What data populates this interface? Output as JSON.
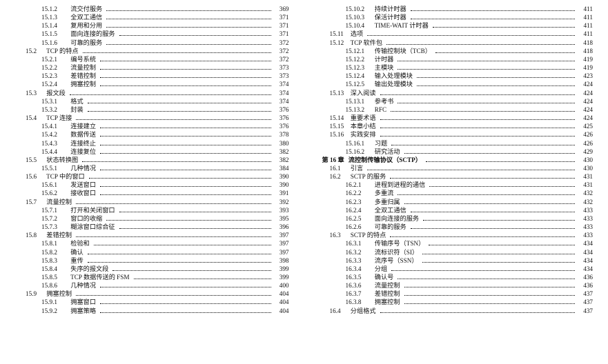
{
  "fontFamily": "SimSun, Songti SC, Times New Roman, serif",
  "fontSizePt": 9.2,
  "textColor": "#111111",
  "dotColor": "#000000",
  "background": "#ffffff",
  "leftColumn": [
    {
      "level": 3,
      "num": "15.1.2",
      "title": "流交付服务",
      "page": "369"
    },
    {
      "level": 3,
      "num": "15.1.3",
      "title": "全双工通信",
      "page": "371"
    },
    {
      "level": 3,
      "num": "15.1.4",
      "title": "复用和分用",
      "page": "371"
    },
    {
      "level": 3,
      "num": "15.1.5",
      "title": "面向连接的服务",
      "page": "371"
    },
    {
      "level": 3,
      "num": "15.1.6",
      "title": "可靠的服务",
      "page": "372"
    },
    {
      "level": 2,
      "num": "15.2",
      "title": "TCP 的特点",
      "page": "372"
    },
    {
      "level": 3,
      "num": "15.2.1",
      "title": "编号系统",
      "page": "372"
    },
    {
      "level": 3,
      "num": "15.2.2",
      "title": "流量控制",
      "page": "373"
    },
    {
      "level": 3,
      "num": "15.2.3",
      "title": "差错控制",
      "page": "373"
    },
    {
      "level": 3,
      "num": "15.2.4",
      "title": "拥塞控制",
      "page": "374"
    },
    {
      "level": 2,
      "num": "15.3",
      "title": "报文段",
      "page": "374"
    },
    {
      "level": 3,
      "num": "15.3.1",
      "title": "格式",
      "page": "374"
    },
    {
      "level": 3,
      "num": "15.3.2",
      "title": "封装",
      "page": "376"
    },
    {
      "level": 2,
      "num": "15.4",
      "title": "TCP 连接",
      "page": "376"
    },
    {
      "level": 3,
      "num": "15.4.1",
      "title": "连接建立",
      "page": "376"
    },
    {
      "level": 3,
      "num": "15.4.2",
      "title": "数据传送",
      "page": "378"
    },
    {
      "level": 3,
      "num": "15.4.3",
      "title": "连接终止",
      "page": "380"
    },
    {
      "level": 3,
      "num": "15.4.4",
      "title": "连接复位",
      "page": "382"
    },
    {
      "level": 2,
      "num": "15.5",
      "title": "状态转换图",
      "page": "382"
    },
    {
      "level": 3,
      "num": "15.5.1",
      "title": "几种情况",
      "page": "384"
    },
    {
      "level": 2,
      "num": "15.6",
      "title": "TCP 中的窗口",
      "page": "390"
    },
    {
      "level": 3,
      "num": "15.6.1",
      "title": "发送窗口",
      "page": "390"
    },
    {
      "level": 3,
      "num": "15.6.2",
      "title": "接收窗口",
      "page": "391"
    },
    {
      "level": 2,
      "num": "15.7",
      "title": "流量控制",
      "page": "392"
    },
    {
      "level": 3,
      "num": "15.7.1",
      "title": "打开和关闭窗口",
      "page": "393"
    },
    {
      "level": 3,
      "num": "15.7.2",
      "title": "窗口的收缩",
      "page": "395"
    },
    {
      "level": 3,
      "num": "15.7.3",
      "title": "糊涂窗口综合征",
      "page": "396"
    },
    {
      "level": 2,
      "num": "15.8",
      "title": "差错控制",
      "page": "397"
    },
    {
      "level": 3,
      "num": "15.8.1",
      "title": "检验和",
      "page": "397"
    },
    {
      "level": 3,
      "num": "15.8.2",
      "title": "确认",
      "page": "397"
    },
    {
      "level": 3,
      "num": "15.8.3",
      "title": "重传",
      "page": "398"
    },
    {
      "level": 3,
      "num": "15.8.4",
      "title": "失序的报文段",
      "page": "399"
    },
    {
      "level": 3,
      "num": "15.8.5",
      "title": "TCP 数据传送的 FSM",
      "page": "399"
    },
    {
      "level": 3,
      "num": "15.8.6",
      "title": "几种情况",
      "page": "400"
    },
    {
      "level": 2,
      "num": "15.9",
      "title": "拥塞控制",
      "page": "404"
    },
    {
      "level": 3,
      "num": "15.9.1",
      "title": "拥塞窗口",
      "page": "404"
    },
    {
      "level": 3,
      "num": "15.9.2",
      "title": "拥塞策略",
      "page": "404"
    }
  ],
  "rightColumn": [
    {
      "level": 3,
      "num": "15.10.2",
      "title": "持续计时器",
      "page": "411"
    },
    {
      "level": 3,
      "num": "15.10.3",
      "title": "保活计时器",
      "page": "411"
    },
    {
      "level": 3,
      "num": "15.10.4",
      "title": "TIME-WAIT 计时器",
      "page": "411"
    },
    {
      "level": 2,
      "num": "15.11",
      "title": "选项",
      "page": "411"
    },
    {
      "level": 2,
      "num": "15.12",
      "title": "TCP 软件包",
      "page": "418"
    },
    {
      "level": 3,
      "num": "15.12.1",
      "title": "传输控制块（TCB）",
      "page": "418"
    },
    {
      "level": 3,
      "num": "15.12.2",
      "title": "计时器",
      "page": "419"
    },
    {
      "level": 3,
      "num": "15.12.3",
      "title": "主模块",
      "page": "419"
    },
    {
      "level": 3,
      "num": "15.12.4",
      "title": "输入处理模块",
      "page": "423"
    },
    {
      "level": 3,
      "num": "15.12.5",
      "title": "输出处理模块",
      "page": "424"
    },
    {
      "level": 2,
      "num": "15.13",
      "title": "深入阅读",
      "page": "424"
    },
    {
      "level": 3,
      "num": "15.13.1",
      "title": "参考书",
      "page": "424"
    },
    {
      "level": 3,
      "num": "15.13.2",
      "title": "RFC",
      "page": "424"
    },
    {
      "level": 2,
      "num": "15.14",
      "title": "重要术语",
      "page": "424"
    },
    {
      "level": 2,
      "num": "15.15",
      "title": "本章小结",
      "page": "425"
    },
    {
      "level": 2,
      "num": "15.16",
      "title": "实践安排",
      "page": "426"
    },
    {
      "level": 3,
      "num": "15.16.1",
      "title": "习题",
      "page": "426"
    },
    {
      "level": 3,
      "num": "15.16.2",
      "title": "研究活动",
      "page": "429"
    },
    {
      "level": 1,
      "num": "第 16 章",
      "title": "流控制传输协议（SCTP）",
      "page": "430"
    },
    {
      "level": 2,
      "num": "16.1",
      "title": "引言",
      "page": "430"
    },
    {
      "level": 2,
      "num": "16.2",
      "title": "SCTP 的服务",
      "page": "431"
    },
    {
      "level": 3,
      "num": "16.2.1",
      "title": "进程到进程的通信",
      "page": "431"
    },
    {
      "level": 3,
      "num": "16.2.2",
      "title": "多重流",
      "page": "432"
    },
    {
      "level": 3,
      "num": "16.2.3",
      "title": "多重归属",
      "page": "432"
    },
    {
      "level": 3,
      "num": "16.2.4",
      "title": "全双工通信",
      "page": "433"
    },
    {
      "level": 3,
      "num": "16.2.5",
      "title": "面向连接的服务",
      "page": "433"
    },
    {
      "level": 3,
      "num": "16.2.6",
      "title": "可靠的服务",
      "page": "433"
    },
    {
      "level": 2,
      "num": "16.3",
      "title": "SCTP 的特点",
      "page": "433"
    },
    {
      "level": 3,
      "num": "16.3.1",
      "title": "传输序号（TSN）",
      "page": "434"
    },
    {
      "level": 3,
      "num": "16.3.2",
      "title": "流标识符（SI）",
      "page": "434"
    },
    {
      "level": 3,
      "num": "16.3.3",
      "title": "流序号（SSN）",
      "page": "434"
    },
    {
      "level": 3,
      "num": "16.3.4",
      "title": "分组",
      "page": "434"
    },
    {
      "level": 3,
      "num": "16.3.5",
      "title": "确认号",
      "page": "436"
    },
    {
      "level": 3,
      "num": "16.3.6",
      "title": "流量控制",
      "page": "436"
    },
    {
      "level": 3,
      "num": "16.3.7",
      "title": "差错控制",
      "page": "437"
    },
    {
      "level": 3,
      "num": "16.3.8",
      "title": "拥塞控制",
      "page": "437"
    },
    {
      "level": 2,
      "num": "16.4",
      "title": "分组格式",
      "page": "437"
    }
  ]
}
